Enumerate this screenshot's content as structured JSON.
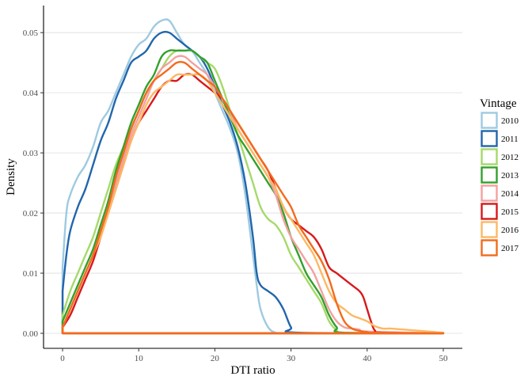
{
  "chart_data": {
    "type": "line",
    "title": "",
    "xlabel": "DTI ratio",
    "ylabel": "Density",
    "xlim": [
      -2.5,
      52.5
    ],
    "ylim": [
      -0.0025,
      0.0545
    ],
    "x_ticks": [
      0,
      10,
      20,
      30,
      40,
      50
    ],
    "y_ticks": [
      0.0,
      0.01,
      0.02,
      0.03,
      0.04,
      0.05
    ],
    "x_tick_labels": [
      "0",
      "10",
      "20",
      "30",
      "40",
      "50"
    ],
    "y_tick_labels": [
      "0.00",
      "0.01",
      "0.02",
      "0.03",
      "0.04",
      "0.05"
    ],
    "grid": "horizontal-major",
    "legend_title": "Vintage",
    "legend_position": "right",
    "series": [
      {
        "name": "2010",
        "color": "#9ecae1",
        "x": [
          0,
          0.5,
          1,
          2,
          3,
          4,
          5,
          6,
          7,
          8,
          9,
          10,
          11,
          12,
          13,
          14,
          15,
          16,
          17,
          18,
          19,
          20,
          21,
          22,
          23,
          24,
          25,
          25.5,
          26,
          27,
          28,
          29,
          50
        ],
        "y": [
          0.011,
          0.02,
          0.023,
          0.026,
          0.028,
          0.031,
          0.035,
          0.037,
          0.04,
          0.043,
          0.046,
          0.048,
          0.049,
          0.051,
          0.052,
          0.052,
          0.05,
          0.048,
          0.047,
          0.045,
          0.043,
          0.04,
          0.037,
          0.034,
          0.03,
          0.023,
          0.013,
          0.008,
          0.004,
          0.001,
          0.0001,
          0.0,
          0.0
        ]
      },
      {
        "name": "2011",
        "color": "#2166ac",
        "x": [
          0,
          0.5,
          1,
          2,
          3,
          4,
          5,
          6,
          7,
          8,
          9,
          10,
          11,
          12,
          13,
          14,
          15,
          16,
          17,
          18,
          19,
          20,
          21,
          22,
          23,
          24,
          25,
          25.5,
          26,
          27,
          28,
          29,
          30,
          31,
          50
        ],
        "y": [
          0.007,
          0.013,
          0.017,
          0.021,
          0.024,
          0.028,
          0.032,
          0.035,
          0.039,
          0.042,
          0.045,
          0.046,
          0.047,
          0.049,
          0.05,
          0.05,
          0.049,
          0.048,
          0.047,
          0.046,
          0.044,
          0.041,
          0.038,
          0.035,
          0.031,
          0.025,
          0.016,
          0.01,
          0.008,
          0.007,
          0.006,
          0.004,
          0.001,
          0.0001,
          0.0
        ]
      },
      {
        "name": "2012",
        "color": "#a6d96a",
        "x": [
          0,
          1,
          2,
          3,
          4,
          5,
          6,
          7,
          8,
          9,
          10,
          11,
          12,
          13,
          14,
          15,
          16,
          17,
          18,
          19,
          20,
          21,
          22,
          23,
          24,
          25,
          26,
          27,
          28,
          29,
          30,
          31,
          32,
          33,
          34,
          35,
          36,
          37,
          50
        ],
        "y": [
          0.003,
          0.007,
          0.01,
          0.013,
          0.016,
          0.02,
          0.024,
          0.028,
          0.031,
          0.034,
          0.037,
          0.04,
          0.042,
          0.044,
          0.046,
          0.047,
          0.047,
          0.047,
          0.046,
          0.045,
          0.044,
          0.041,
          0.037,
          0.033,
          0.029,
          0.025,
          0.021,
          0.019,
          0.018,
          0.016,
          0.013,
          0.011,
          0.009,
          0.007,
          0.005,
          0.002,
          0.0005,
          0.0001,
          0.0
        ]
      },
      {
        "name": "2013",
        "color": "#33a02c",
        "x": [
          0,
          1,
          2,
          3,
          4,
          5,
          6,
          7,
          8,
          9,
          10,
          11,
          12,
          13,
          14,
          15,
          16,
          17,
          18,
          19,
          20,
          21,
          22,
          23,
          24,
          25,
          26,
          27,
          28,
          29,
          30,
          31,
          32,
          33,
          34,
          35,
          36,
          37,
          50
        ],
        "y": [
          0.002,
          0.005,
          0.008,
          0.011,
          0.014,
          0.018,
          0.022,
          0.027,
          0.031,
          0.035,
          0.038,
          0.041,
          0.043,
          0.046,
          0.047,
          0.047,
          0.047,
          0.047,
          0.046,
          0.045,
          0.042,
          0.039,
          0.036,
          0.033,
          0.031,
          0.029,
          0.027,
          0.025,
          0.023,
          0.02,
          0.016,
          0.013,
          0.01,
          0.008,
          0.006,
          0.003,
          0.001,
          0.0001,
          0.0
        ]
      },
      {
        "name": "2014",
        "color": "#f4a0a0",
        "x": [
          0,
          1,
          2,
          3,
          4,
          5,
          6,
          7,
          8,
          9,
          10,
          11,
          12,
          13,
          14,
          15,
          16,
          17,
          18,
          19,
          20,
          21,
          22,
          23,
          24,
          25,
          26,
          27,
          28,
          29,
          30,
          31,
          32,
          33,
          34,
          35,
          36,
          37,
          38,
          39,
          40,
          50
        ],
        "y": [
          0.001,
          0.004,
          0.007,
          0.01,
          0.013,
          0.017,
          0.021,
          0.025,
          0.029,
          0.033,
          0.036,
          0.039,
          0.042,
          0.044,
          0.045,
          0.046,
          0.046,
          0.045,
          0.044,
          0.043,
          0.041,
          0.039,
          0.037,
          0.034,
          0.032,
          0.03,
          0.028,
          0.026,
          0.023,
          0.019,
          0.016,
          0.014,
          0.012,
          0.01,
          0.007,
          0.004,
          0.002,
          0.001,
          0.0008,
          0.0006,
          0.0003,
          0.0
        ]
      },
      {
        "name": "2015",
        "color": "#d7191c",
        "x": [
          0,
          1,
          2,
          3,
          4,
          5,
          6,
          7,
          8,
          9,
          10,
          11,
          12,
          13,
          14,
          15,
          16,
          17,
          18,
          19,
          20,
          21,
          22,
          23,
          24,
          25,
          26,
          27,
          28,
          29,
          30,
          31,
          32,
          33,
          34,
          35,
          36,
          37,
          38,
          39,
          39.5,
          40,
          40.5,
          41,
          42,
          50
        ],
        "y": [
          0.001,
          0.003,
          0.006,
          0.009,
          0.012,
          0.016,
          0.02,
          0.024,
          0.028,
          0.032,
          0.035,
          0.037,
          0.039,
          0.041,
          0.042,
          0.042,
          0.043,
          0.043,
          0.042,
          0.041,
          0.04,
          0.039,
          0.037,
          0.035,
          0.033,
          0.031,
          0.029,
          0.027,
          0.024,
          0.021,
          0.019,
          0.018,
          0.017,
          0.016,
          0.014,
          0.011,
          0.01,
          0.009,
          0.008,
          0.007,
          0.006,
          0.004,
          0.002,
          0.0005,
          0.0001,
          0.0
        ]
      },
      {
        "name": "2016",
        "color": "#fdb863",
        "x": [
          0,
          1,
          2,
          3,
          4,
          5,
          6,
          7,
          8,
          9,
          10,
          11,
          12,
          13,
          14,
          15,
          16,
          17,
          18,
          19,
          20,
          21,
          22,
          23,
          24,
          25,
          26,
          27,
          28,
          29,
          30,
          31,
          32,
          33,
          34,
          35,
          36,
          37,
          38,
          39,
          40,
          41,
          42,
          43,
          44,
          45,
          46,
          47,
          48,
          49,
          50
        ],
        "y": [
          0.001,
          0.004,
          0.007,
          0.01,
          0.013,
          0.016,
          0.02,
          0.024,
          0.028,
          0.032,
          0.035,
          0.038,
          0.04,
          0.041,
          0.042,
          0.043,
          0.043,
          0.043,
          0.043,
          0.042,
          0.04,
          0.038,
          0.036,
          0.034,
          0.032,
          0.03,
          0.028,
          0.026,
          0.024,
          0.021,
          0.019,
          0.017,
          0.015,
          0.013,
          0.01,
          0.007,
          0.005,
          0.004,
          0.003,
          0.0025,
          0.002,
          0.0012,
          0.0008,
          0.0008,
          0.0007,
          0.0006,
          0.0005,
          0.0004,
          0.0003,
          0.0002,
          0.0001
        ]
      },
      {
        "name": "2017",
        "color": "#f26b1d",
        "x": [
          0,
          1,
          2,
          3,
          4,
          5,
          6,
          7,
          8,
          9,
          10,
          11,
          12,
          13,
          14,
          15,
          16,
          17,
          18,
          19,
          20,
          21,
          22,
          23,
          24,
          25,
          26,
          27,
          28,
          29,
          30,
          31,
          32,
          33,
          34,
          35,
          36,
          37,
          38,
          39,
          40,
          41,
          50
        ],
        "y": [
          0.001,
          0.004,
          0.007,
          0.01,
          0.013,
          0.017,
          0.021,
          0.026,
          0.03,
          0.034,
          0.037,
          0.04,
          0.042,
          0.043,
          0.044,
          0.045,
          0.045,
          0.044,
          0.043,
          0.042,
          0.041,
          0.039,
          0.037,
          0.035,
          0.033,
          0.031,
          0.029,
          0.027,
          0.025,
          0.023,
          0.021,
          0.018,
          0.016,
          0.014,
          0.012,
          0.009,
          0.005,
          0.002,
          0.0008,
          0.0004,
          0.0002,
          0.0001,
          0.0
        ]
      }
    ]
  }
}
